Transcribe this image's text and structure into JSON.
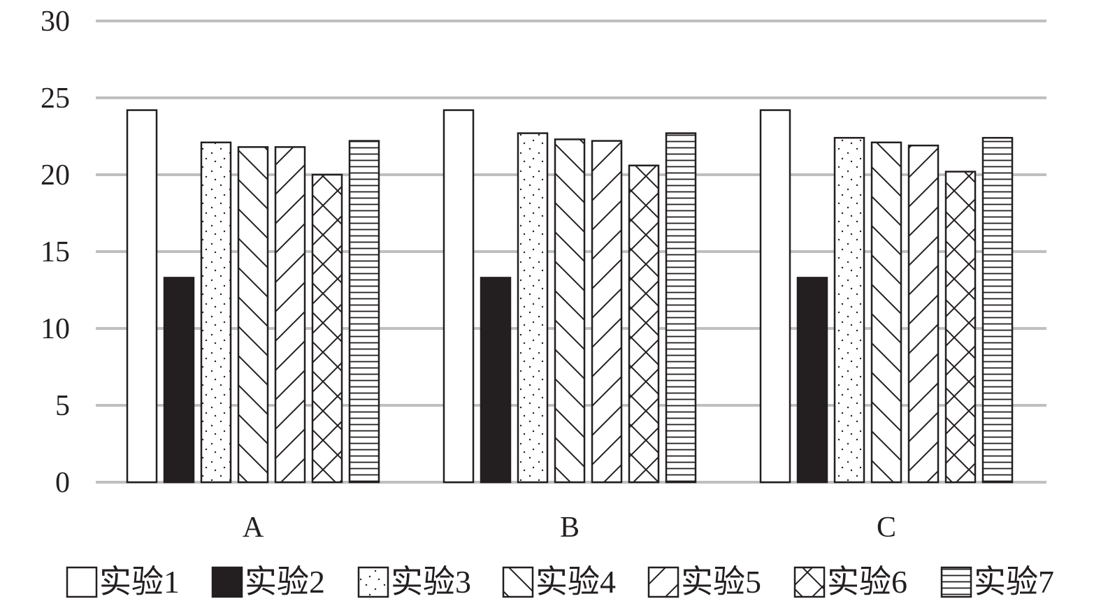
{
  "chart_data": {
    "type": "bar",
    "categories": [
      "A",
      "B",
      "C"
    ],
    "series": [
      {
        "name": "实验1",
        "pattern": "empty",
        "values": [
          24.2,
          24.2,
          24.2
        ]
      },
      {
        "name": "实验2",
        "pattern": "solid",
        "values": [
          13.3,
          13.3,
          13.3
        ]
      },
      {
        "name": "实验3",
        "pattern": "dots",
        "values": [
          22.1,
          22.7,
          22.4
        ]
      },
      {
        "name": "实验4",
        "pattern": "backslash",
        "values": [
          21.8,
          22.3,
          22.1
        ]
      },
      {
        "name": "实验5",
        "pattern": "slash",
        "values": [
          21.8,
          22.2,
          21.9
        ]
      },
      {
        "name": "实验6",
        "pattern": "cross",
        "values": [
          20.0,
          20.6,
          20.2
        ]
      },
      {
        "name": "实验7",
        "pattern": "horizontal",
        "values": [
          22.2,
          22.7,
          22.4
        ]
      }
    ],
    "yticks": [
      "0",
      "5",
      "10",
      "15",
      "20",
      "25",
      "30"
    ],
    "ylim": [
      0,
      30
    ],
    "grid": true,
    "legend_position": "bottom",
    "colors": {
      "grid": "#bfbfbf",
      "outline": "#231f20",
      "solid": "#231f20",
      "background": "#ffffff"
    }
  }
}
